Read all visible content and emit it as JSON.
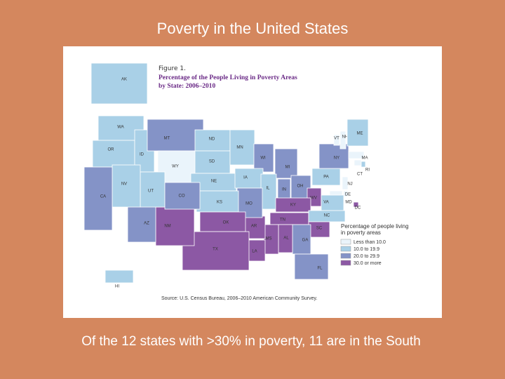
{
  "header": {
    "title": "Poverty in the United States"
  },
  "figure": {
    "label": "Figure 1.",
    "title_lines": [
      "Percentage of the People Living in Poverty Areas",
      "by State: 2006–2010"
    ],
    "legend": {
      "title_lines": [
        "Percentage of people living",
        "in poverty areas"
      ],
      "items": [
        {
          "label": "Less than 10.0",
          "color": "#eaf4fb"
        },
        {
          "label": "10.0 to 19.9",
          "color": "#a9d0e7"
        },
        {
          "label": "20.0 to 29.9",
          "color": "#8493c7"
        },
        {
          "label": "30.0 or more",
          "color": "#8c58a4"
        }
      ]
    },
    "source": "Source: U.S. Census Bureau, 2006–2010 American Community Survey.",
    "states": [
      {
        "label": "AK",
        "class": 1
      },
      {
        "label": "WA",
        "class": 1
      },
      {
        "label": "OR",
        "class": 1
      },
      {
        "label": "ID",
        "class": 1
      },
      {
        "label": "MT",
        "class": 2
      },
      {
        "label": "WY",
        "class": 0
      },
      {
        "label": "ND",
        "class": 1
      },
      {
        "label": "SD",
        "class": 1
      },
      {
        "label": "NE",
        "class": 1
      },
      {
        "label": "MN",
        "class": 1
      },
      {
        "label": "WI",
        "class": 2
      },
      {
        "label": "MI",
        "class": 2
      },
      {
        "label": "IA",
        "class": 1
      },
      {
        "label": "IL",
        "class": 1
      },
      {
        "label": "IN",
        "class": 2
      },
      {
        "label": "OH",
        "class": 2
      },
      {
        "label": "PA",
        "class": 1
      },
      {
        "label": "NY",
        "class": 2
      },
      {
        "label": "VT",
        "class": 0
      },
      {
        "label": "NH",
        "class": 0
      },
      {
        "label": "ME",
        "class": 1
      },
      {
        "label": "MA",
        "class": 0
      },
      {
        "label": "RI",
        "class": 1
      },
      {
        "label": "CT",
        "class": 0
      },
      {
        "label": "NJ",
        "class": 0
      },
      {
        "label": "DE",
        "class": 0
      },
      {
        "label": "MD",
        "class": 0
      },
      {
        "label": "DC",
        "class": 3
      },
      {
        "label": "WV",
        "class": 3
      },
      {
        "label": "VA",
        "class": 1
      },
      {
        "label": "KY",
        "class": 3
      },
      {
        "label": "TN",
        "class": 3
      },
      {
        "label": "NC",
        "class": 1
      },
      {
        "label": "SC",
        "class": 3
      },
      {
        "label": "GA",
        "class": 2
      },
      {
        "label": "FL",
        "class": 2
      },
      {
        "label": "AL",
        "class": 3
      },
      {
        "label": "MS",
        "class": 3
      },
      {
        "label": "LA",
        "class": 3
      },
      {
        "label": "AR",
        "class": 3
      },
      {
        "label": "MO",
        "class": 2
      },
      {
        "label": "KS",
        "class": 1
      },
      {
        "label": "OK",
        "class": 3
      },
      {
        "label": "TX",
        "class": 3
      },
      {
        "label": "NM",
        "class": 3
      },
      {
        "label": "AZ",
        "class": 2
      },
      {
        "label": "UT",
        "class": 1
      },
      {
        "label": "CO",
        "class": 2
      },
      {
        "label": "NV",
        "class": 1
      },
      {
        "label": "CA",
        "class": 2
      },
      {
        "label": "HI",
        "class": 1
      }
    ]
  },
  "footer": {
    "caption": "Of the 12 states with >30% in poverty, 11 are in the South"
  }
}
